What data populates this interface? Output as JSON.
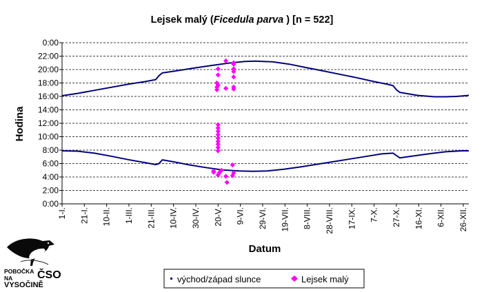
{
  "chart_data": {
    "type": "scatter",
    "title": {
      "prefix": "Lejsek malý (",
      "italic": "Ficedula parva",
      "suffix": " ) [n = 522]"
    },
    "xlabel": "Datum",
    "ylabel": "Hodina",
    "x_unit": "day_of_year",
    "xlim": [
      1,
      366
    ],
    "x_ticks": [
      {
        "day": 1,
        "label": "1-I."
      },
      {
        "day": 21,
        "label": "21-I."
      },
      {
        "day": 41,
        "label": "10-II."
      },
      {
        "day": 61,
        "label": "1-III."
      },
      {
        "day": 81,
        "label": "21-III."
      },
      {
        "day": 101,
        "label": "10-IV."
      },
      {
        "day": 121,
        "label": "30-IV."
      },
      {
        "day": 141,
        "label": "20-V."
      },
      {
        "day": 161,
        "label": "9-VI."
      },
      {
        "day": 181,
        "label": "29-VI."
      },
      {
        "day": 201,
        "label": "19-VII."
      },
      {
        "day": 221,
        "label": "8-VIII."
      },
      {
        "day": 241,
        "label": "28-VIII."
      },
      {
        "day": 261,
        "label": "17-IX."
      },
      {
        "day": 281,
        "label": "7-X."
      },
      {
        "day": 301,
        "label": "27-X."
      },
      {
        "day": 321,
        "label": "16-XI."
      },
      {
        "day": 341,
        "label": "6-XII."
      },
      {
        "day": 361,
        "label": "26-XII."
      }
    ],
    "ylim": [
      0,
      24
    ],
    "y_reversed": true,
    "y_ticks": [
      {
        "value": 0,
        "label": "0:00"
      },
      {
        "value": 2,
        "label": "2:00"
      },
      {
        "value": 4,
        "label": "4:00"
      },
      {
        "value": 6,
        "label": "6:00"
      },
      {
        "value": 8,
        "label": "8:00"
      },
      {
        "value": 10,
        "label": "10:00"
      },
      {
        "value": 12,
        "label": "12:00"
      },
      {
        "value": 14,
        "label": "14:00"
      },
      {
        "value": 16,
        "label": "16:00"
      },
      {
        "value": 18,
        "label": "18:00"
      },
      {
        "value": 20,
        "label": "20:00"
      },
      {
        "value": 22,
        "label": "22:00"
      },
      {
        "value": 24,
        "label": "0:00"
      }
    ],
    "grid": "horizontal dashed",
    "legend_position": "bottom-center",
    "series": [
      {
        "name": "východ/západ slunce",
        "type": "line",
        "color": "#000080",
        "lines": [
          {
            "segment": "sunrise",
            "points": [
              [
                1,
                7.9
              ],
              [
                15,
                7.85
              ],
              [
                30,
                7.55
              ],
              [
                45,
                7.1
              ],
              [
                60,
                6.6
              ],
              [
                75,
                6.15
              ],
              [
                85,
                5.85
              ],
              [
                88,
                6.0
              ],
              [
                91,
                6.55
              ],
              [
                100,
                6.3
              ],
              [
                115,
                5.8
              ],
              [
                130,
                5.4
              ],
              [
                145,
                5.05
              ],
              [
                160,
                4.9
              ],
              [
                172,
                4.85
              ],
              [
                185,
                4.9
              ],
              [
                200,
                5.15
              ],
              [
                215,
                5.5
              ],
              [
                230,
                5.9
              ],
              [
                245,
                6.3
              ],
              [
                260,
                6.7
              ],
              [
                275,
                7.1
              ],
              [
                288,
                7.45
              ],
              [
                298,
                7.55
              ],
              [
                301,
                7.2
              ],
              [
                304,
                6.85
              ],
              [
                315,
                7.1
              ],
              [
                330,
                7.45
              ],
              [
                345,
                7.75
              ],
              [
                360,
                7.9
              ],
              [
                366,
                7.9
              ]
            ]
          },
          {
            "segment": "sunset",
            "points": [
              [
                1,
                16.1
              ],
              [
                15,
                16.45
              ],
              [
                30,
                16.9
              ],
              [
                45,
                17.35
              ],
              [
                60,
                17.8
              ],
              [
                75,
                18.2
              ],
              [
                85,
                18.5
              ],
              [
                88,
                19.1
              ],
              [
                91,
                19.5
              ],
              [
                105,
                19.85
              ],
              [
                120,
                20.25
              ],
              [
                135,
                20.6
              ],
              [
                150,
                20.95
              ],
              [
                165,
                21.2
              ],
              [
                175,
                21.25
              ],
              [
                190,
                21.15
              ],
              [
                205,
                20.8
              ],
              [
                220,
                20.3
              ],
              [
                235,
                19.8
              ],
              [
                250,
                19.3
              ],
              [
                265,
                18.8
              ],
              [
                280,
                18.25
              ],
              [
                293,
                17.8
              ],
              [
                298,
                17.6
              ],
              [
                301,
                17.0
              ],
              [
                304,
                16.6
              ],
              [
                320,
                16.15
              ],
              [
                335,
                15.95
              ],
              [
                345,
                15.95
              ],
              [
                355,
                16.0
              ],
              [
                366,
                16.15
              ]
            ]
          }
        ]
      },
      {
        "name": "Lejsek malý",
        "type": "scatter",
        "color": "#ff00ff",
        "marker": "diamond",
        "points": [
          [
            137,
            4.7
          ],
          [
            137,
            4.9
          ],
          [
            141,
            4.3
          ],
          [
            142,
            4.6
          ],
          [
            143,
            4.8
          ],
          [
            144,
            5.0
          ],
          [
            148,
            4.1
          ],
          [
            149,
            3.2
          ],
          [
            154,
            4.2
          ],
          [
            155,
            4.6
          ],
          [
            154,
            5.8
          ],
          [
            141,
            7.9
          ],
          [
            141,
            8.4
          ],
          [
            141,
            8.9
          ],
          [
            141,
            9.3
          ],
          [
            141,
            9.8
          ],
          [
            141,
            10.3
          ],
          [
            141,
            10.8
          ],
          [
            141,
            11.3
          ],
          [
            141,
            11.8
          ],
          [
            140,
            17.0
          ],
          [
            140,
            17.4
          ],
          [
            141,
            17.7
          ],
          [
            140,
            18.0
          ],
          [
            141,
            19.2
          ],
          [
            141,
            20.1
          ],
          [
            148,
            17.2
          ],
          [
            155,
            17.1
          ],
          [
            155,
            17.4
          ],
          [
            155,
            18.9
          ],
          [
            155,
            19.7
          ],
          [
            155,
            20.1
          ],
          [
            155,
            20.8
          ],
          [
            155,
            21.0
          ],
          [
            148,
            21.3
          ]
        ]
      }
    ]
  },
  "logo": {
    "line1": "POBOČKA",
    "line2": "NA",
    "line3": "VYSOČINĚ",
    "big": "ČSO",
    "bird_icon": "dipper-bird-icon"
  }
}
